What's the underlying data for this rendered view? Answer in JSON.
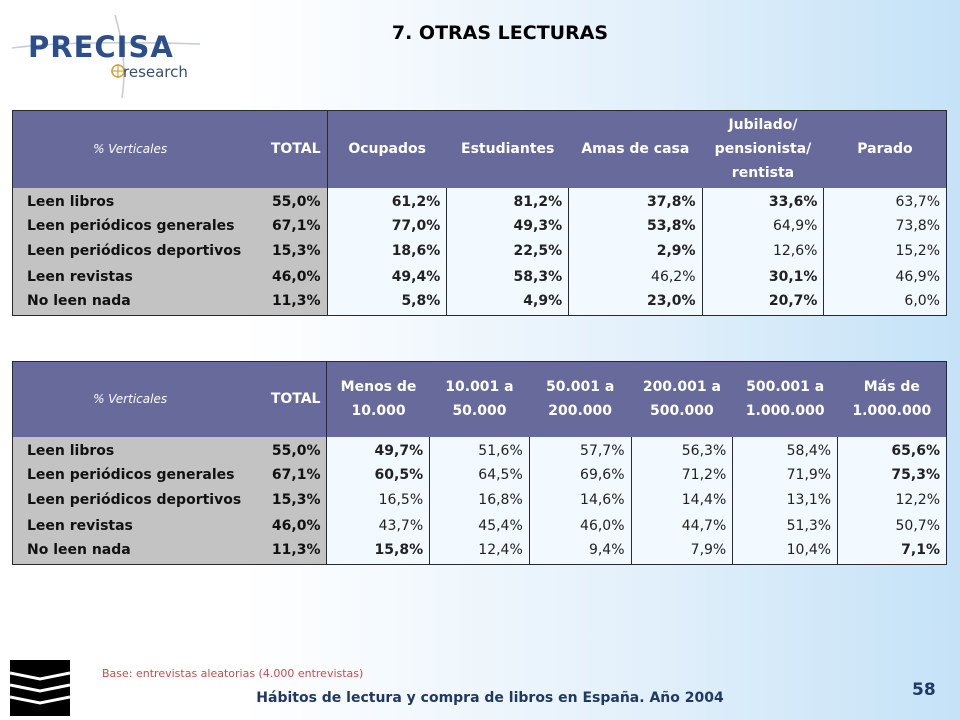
{
  "logo": {
    "name": "PRECISA",
    "sub": "research"
  },
  "title": "7. OTRAS LECTURAS",
  "colors": {
    "header": "#676a9b",
    "label_bg": "#c3c3c3",
    "high": "#2a9e3c",
    "low": "#e01818"
  },
  "table1": {
    "headers": [
      "% Verticales",
      "TOTAL",
      "Ocupados",
      "Estudiantes",
      "Amas de casa",
      "Jubilado/ pensionista/ rentista",
      "Parado"
    ],
    "rows": [
      {
        "label": "Leen libros",
        "total": "55,0%",
        "cells": [
          {
            "v": "61,2%",
            "c": "hi"
          },
          {
            "v": "81,2%",
            "c": "hi"
          },
          {
            "v": "37,8%",
            "c": "lo"
          },
          {
            "v": "33,6%",
            "c": "lo"
          },
          {
            "v": "63,7%",
            "c": ""
          }
        ]
      },
      {
        "label": "Leen periódicos generales",
        "total": "67,1%",
        "cells": [
          {
            "v": "77,0%",
            "c": "hi"
          },
          {
            "v": "49,3%",
            "c": "lo"
          },
          {
            "v": "53,8%",
            "c": "lo"
          },
          {
            "v": "64,9%",
            "c": ""
          },
          {
            "v": "73,8%",
            "c": ""
          }
        ]
      },
      {
        "label": "Leen periódicos deportivos",
        "total": "15,3%",
        "cells": [
          {
            "v": "18,6%",
            "c": "hi"
          },
          {
            "v": "22,5%",
            "c": "hi"
          },
          {
            "v": "2,9%",
            "c": "lo"
          },
          {
            "v": "12,6%",
            "c": ""
          },
          {
            "v": "15,2%",
            "c": ""
          }
        ]
      },
      {
        "label": "Leen revistas",
        "total": "46,0%",
        "cells": [
          {
            "v": "49,4%",
            "c": "hi"
          },
          {
            "v": "58,3%",
            "c": "hi"
          },
          {
            "v": "46,2%",
            "c": ""
          },
          {
            "v": "30,1%",
            "c": "lo"
          },
          {
            "v": "46,9%",
            "c": ""
          }
        ]
      },
      {
        "label": "No leen nada",
        "total": "11,3%",
        "cells": [
          {
            "v": "5,8%",
            "c": "lo"
          },
          {
            "v": "4,9%",
            "c": "lo"
          },
          {
            "v": "23,0%",
            "c": "hi"
          },
          {
            "v": "20,7%",
            "c": "hi"
          },
          {
            "v": "6,0%",
            "c": ""
          }
        ]
      }
    ]
  },
  "table2": {
    "headers": [
      "% Verticales",
      "TOTAL",
      "Menos de 10.000",
      "10.001 a 50.000",
      "50.001 a 200.000",
      "200.001 a 500.000",
      "500.001 a 1.000.000",
      "Más de 1.000.000"
    ],
    "rows": [
      {
        "label": "Leen libros",
        "total": "55,0%",
        "cells": [
          {
            "v": "49,7%",
            "c": "lo"
          },
          {
            "v": "51,6%",
            "c": ""
          },
          {
            "v": "57,7%",
            "c": ""
          },
          {
            "v": "56,3%",
            "c": ""
          },
          {
            "v": "58,4%",
            "c": ""
          },
          {
            "v": "65,6%",
            "c": "hi"
          }
        ]
      },
      {
        "label": "Leen periódicos generales",
        "total": "67,1%",
        "cells": [
          {
            "v": "60,5%",
            "c": "lo"
          },
          {
            "v": "64,5%",
            "c": ""
          },
          {
            "v": "69,6%",
            "c": ""
          },
          {
            "v": "71,2%",
            "c": ""
          },
          {
            "v": "71,9%",
            "c": ""
          },
          {
            "v": "75,3%",
            "c": "hi"
          }
        ]
      },
      {
        "label": "Leen periódicos deportivos",
        "total": "15,3%",
        "cells": [
          {
            "v": "16,5%",
            "c": ""
          },
          {
            "v": "16,8%",
            "c": ""
          },
          {
            "v": "14,6%",
            "c": ""
          },
          {
            "v": "14,4%",
            "c": ""
          },
          {
            "v": "13,1%",
            "c": ""
          },
          {
            "v": "12,2%",
            "c": ""
          }
        ]
      },
      {
        "label": "Leen revistas",
        "total": "46,0%",
        "cells": [
          {
            "v": "43,7%",
            "c": ""
          },
          {
            "v": "45,4%",
            "c": ""
          },
          {
            "v": "46,0%",
            "c": ""
          },
          {
            "v": "44,7%",
            "c": ""
          },
          {
            "v": "51,3%",
            "c": ""
          },
          {
            "v": "50,7%",
            "c": ""
          }
        ]
      },
      {
        "label": "No leen nada",
        "total": "11,3%",
        "cells": [
          {
            "v": "15,8%",
            "c": "hi"
          },
          {
            "v": "12,4%",
            "c": ""
          },
          {
            "v": "9,4%",
            "c": ""
          },
          {
            "v": "7,9%",
            "c": ""
          },
          {
            "v": "10,4%",
            "c": ""
          },
          {
            "v": "7,1%",
            "c": "lo"
          }
        ]
      }
    ]
  },
  "footnote": "Base: entrevistas aleatorias (4.000 entrevistas)",
  "footer": "Hábitos de lectura y compra de libros en España. Año 2004",
  "page_number": "58",
  "icons": {
    "logo": "precisa-logo-icon",
    "publisher": "book-stack-icon"
  }
}
